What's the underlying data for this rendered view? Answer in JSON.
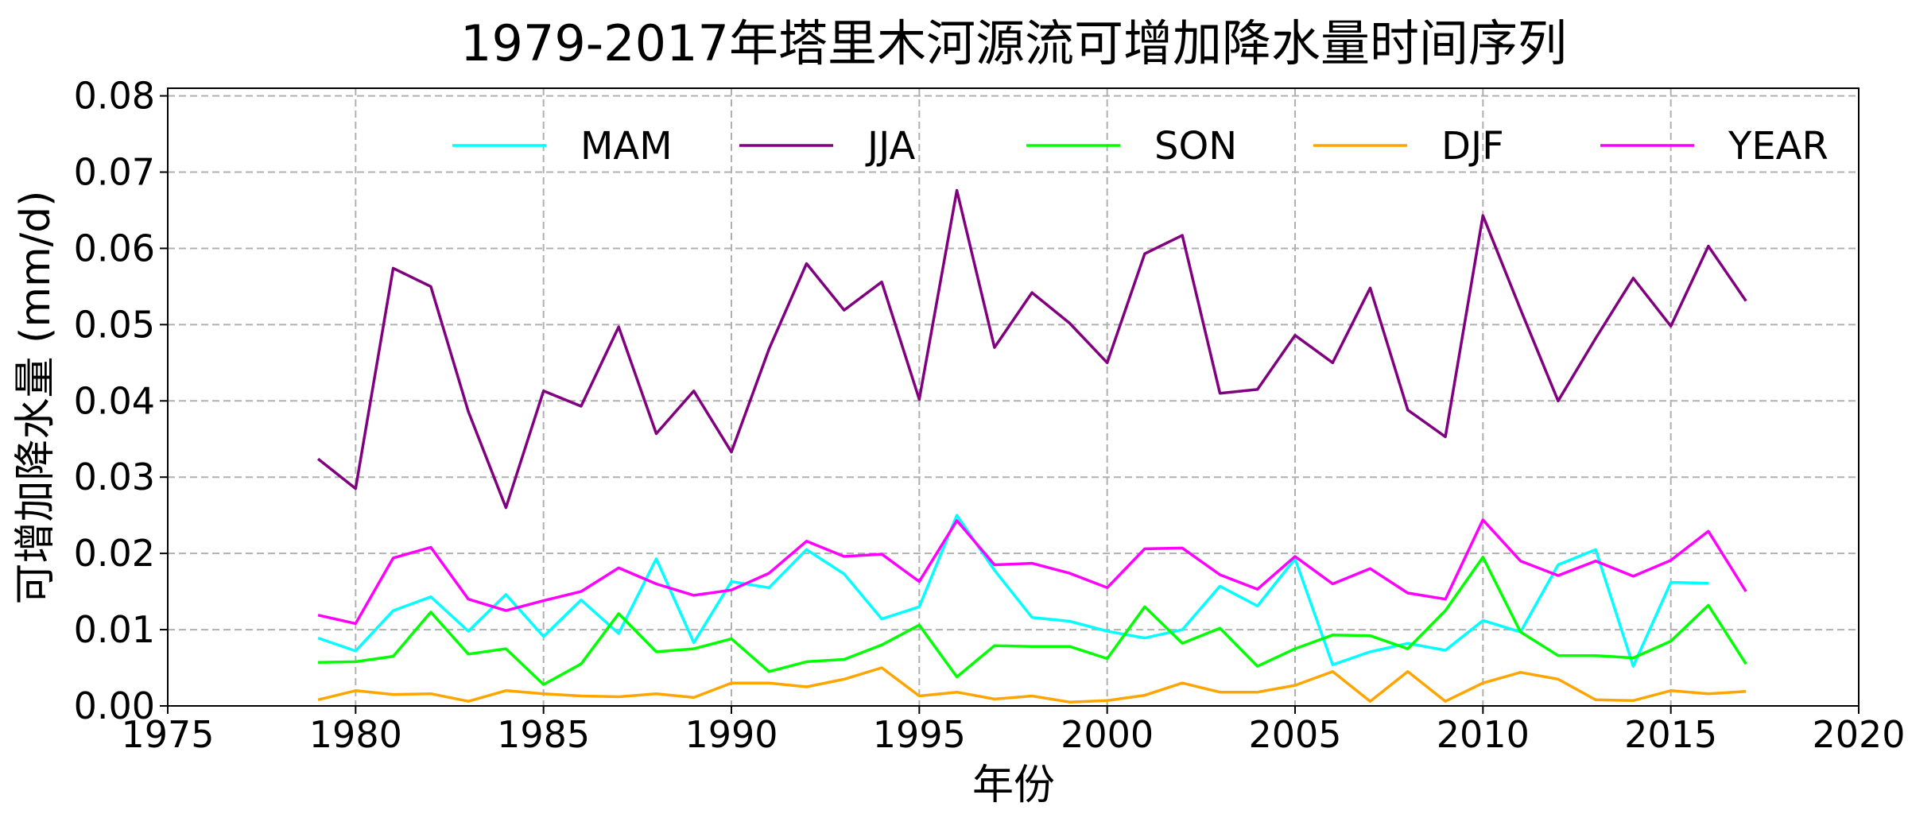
{
  "chart_data": {
    "type": "line",
    "title": "1979-2017年塔里木河源流可增加降水量时间序列",
    "xlabel": "年份",
    "ylabel": "可增加降水量 (mm/d)",
    "xlim": [
      1975,
      2020
    ],
    "ylim": [
      0,
      0.081
    ],
    "xticks": [
      "1975",
      "1980",
      "1985",
      "1990",
      "1995",
      "2000",
      "2005",
      "2010",
      "2015",
      "2020"
    ],
    "yticks": [
      "0.00",
      "0.01",
      "0.02",
      "0.03",
      "0.04",
      "0.05",
      "0.06",
      "0.07",
      "0.08"
    ],
    "grid": true,
    "legend_placement": "top",
    "x": [
      1979,
      1980,
      1981,
      1982,
      1983,
      1984,
      1985,
      1986,
      1987,
      1988,
      1989,
      1990,
      1991,
      1992,
      1993,
      1994,
      1995,
      1996,
      1997,
      1998,
      1999,
      2000,
      2001,
      2002,
      2003,
      2004,
      2005,
      2006,
      2007,
      2008,
      2009,
      2010,
      2011,
      2012,
      2013,
      2014,
      2015,
      2016,
      2017
    ],
    "series": [
      {
        "name": "MAM",
        "color": "#00FFFF",
        "values": [
          0.0089,
          0.0072,
          0.0125,
          0.0143,
          0.0098,
          0.0146,
          0.0091,
          0.0139,
          0.0095,
          0.0193,
          0.0083,
          0.0163,
          0.0155,
          0.0205,
          0.0173,
          0.0114,
          0.013,
          0.025,
          0.0178,
          0.0116,
          0.0111,
          0.0098,
          0.0089,
          0.01,
          0.0157,
          0.0131,
          0.0193,
          0.0054,
          0.0071,
          0.0082,
          0.0073,
          0.0112,
          0.0097,
          0.0185,
          0.0205,
          0.0052,
          0.0162,
          0.0161,
          null
        ]
      },
      {
        "name": "JJA",
        "color": "#800080",
        "values": [
          0.0324,
          0.0285,
          0.0574,
          0.055,
          0.0386,
          0.026,
          0.0413,
          0.0393,
          0.0497,
          0.0357,
          0.0413,
          0.0333,
          0.0468,
          0.058,
          0.0519,
          0.0556,
          0.0402,
          0.0676,
          0.047,
          0.0542,
          0.0502,
          0.045,
          0.0593,
          0.0617,
          0.041,
          0.0415,
          0.0486,
          0.045,
          0.0548,
          0.0388,
          0.0353,
          0.0643,
          0.052,
          0.04,
          0.0482,
          0.0561,
          0.0498,
          0.0603,
          0.0531
        ]
      },
      {
        "name": "SON",
        "color": "#00FF00",
        "values": [
          0.0057,
          0.0058,
          0.0065,
          0.0123,
          0.0068,
          0.0075,
          0.0028,
          0.0055,
          0.0121,
          0.0071,
          0.0075,
          0.0088,
          0.0045,
          0.0058,
          0.0061,
          0.008,
          0.0106,
          0.0038,
          0.0079,
          0.0078,
          0.0078,
          0.0062,
          0.013,
          0.0082,
          0.0102,
          0.0052,
          0.0075,
          0.0093,
          0.0092,
          0.0075,
          0.0125,
          0.0195,
          0.0097,
          0.0066,
          0.0066,
          0.0063,
          0.0085,
          0.0132,
          0.0055
        ]
      },
      {
        "name": "DJF",
        "color": "#FFA500",
        "values": [
          0.0008,
          0.002,
          0.0015,
          0.0016,
          0.0006,
          0.002,
          0.0016,
          0.0013,
          0.0012,
          0.0016,
          0.0011,
          0.003,
          0.003,
          0.0025,
          0.0035,
          0.005,
          0.0013,
          0.0018,
          0.0009,
          0.0013,
          0.0005,
          0.0007,
          0.0014,
          0.003,
          0.0018,
          0.0018,
          0.0027,
          0.0045,
          0.0006,
          0.0045,
          0.0006,
          0.003,
          0.0044,
          0.0035,
          0.0008,
          0.0007,
          0.002,
          0.0016,
          0.0019
        ]
      },
      {
        "name": "YEAR",
        "color": "#FF00FF",
        "values": [
          0.0119,
          0.0108,
          0.0194,
          0.0208,
          0.014,
          0.0125,
          0.0138,
          0.015,
          0.0181,
          0.016,
          0.0145,
          0.0152,
          0.0174,
          0.0216,
          0.0196,
          0.0199,
          0.0163,
          0.0243,
          0.0185,
          0.0187,
          0.0174,
          0.0155,
          0.0206,
          0.0207,
          0.0172,
          0.0153,
          0.0196,
          0.016,
          0.018,
          0.0148,
          0.014,
          0.0244,
          0.019,
          0.0171,
          0.019,
          0.017,
          0.0191,
          0.0229,
          0.015
        ]
      }
    ]
  }
}
